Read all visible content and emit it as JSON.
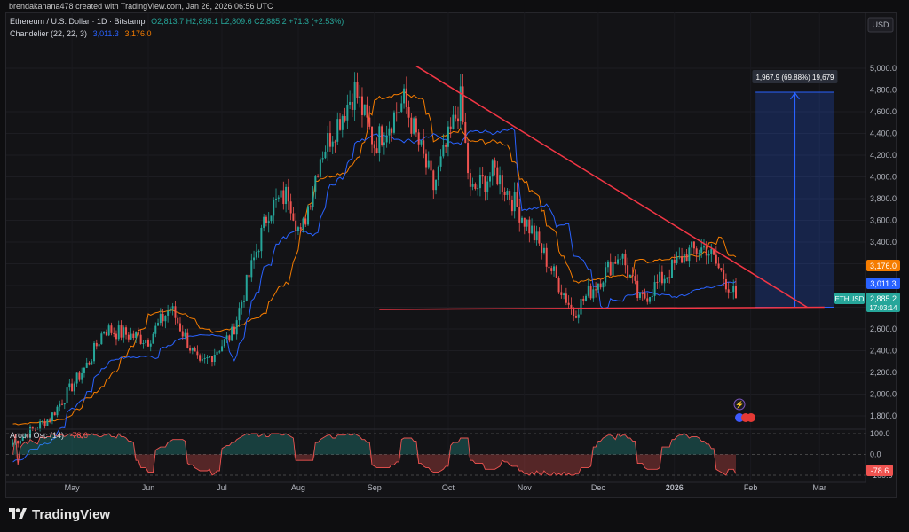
{
  "header": {
    "text": "brendakanana478 created with TradingView.com, Jan 26, 2026 06:56 UTC"
  },
  "legend": {
    "symbol": "Ethereum / U.S. Dollar · 1D · Bitstamp",
    "ohlc": "O2,813.7 H2,895.1 L2,809.6 C2,885.2 +71.3 (+2.53%)",
    "indicator_name": "Chandelier (22, 22, 3)",
    "indicator_val1": "3,011.3",
    "indicator_val2": "3,176.0",
    "aroon_name": "Aroon Osc (14)",
    "aroon_val": "-78.6"
  },
  "currency": "USD",
  "price_axis": [
    "5,000.0",
    "4,800.0",
    "4,600.0",
    "4,400.0",
    "4,200.0",
    "4,000.0",
    "3,800.0",
    "3,600.0",
    "3,400.0",
    "3,200.0",
    "3,000.0",
    "2,800.0",
    "2,600.0",
    "2,400.0",
    "2,200.0",
    "2,000.0",
    "1,800.0"
  ],
  "aroon_axis": [
    "100.0",
    "0.0",
    "-100.0"
  ],
  "time_axis": [
    "May",
    "Jun",
    "Jul",
    "Aug",
    "Sep",
    "Oct",
    "Nov",
    "Dec",
    "2026",
    "Feb",
    "Mar"
  ],
  "price_tags": {
    "chandelier_upper": "3,176.0",
    "chandelier_lower": "3,011.3",
    "symbol": "ETHUSD",
    "last_price": "2,885.2",
    "countdown": "17:03:14",
    "aroon_last": "-78.6"
  },
  "measure_label": "1,967.9 (69.88%) 19,679",
  "colors": {
    "up": "#26a69a",
    "down": "#ef5350",
    "chandelier_upper": "#f57c00",
    "chandelier_lower": "#2962ff",
    "trendline": "#f23645",
    "measure": "#2962ff"
  },
  "footer": {
    "brand": "TradingView"
  },
  "chart_data": {
    "type": "candlestick",
    "title": "Ethereum / U.S. Dollar · 1D · Bitstamp",
    "ylim": [
      1700,
      5150
    ],
    "price_key_points": [
      [
        "2025-04-07",
        1550
      ],
      [
        "2025-04-22",
        1780
      ],
      [
        "2025-05-08",
        2300
      ],
      [
        "2025-05-14",
        2600
      ],
      [
        "2025-06-01",
        2500
      ],
      [
        "2025-06-10",
        2800
      ],
      [
        "2025-06-22",
        2250
      ],
      [
        "2025-07-05",
        2550
      ],
      [
        "2025-07-20",
        3700
      ],
      [
        "2025-07-28",
        3850
      ],
      [
        "2025-08-02",
        3450
      ],
      [
        "2025-08-10",
        4200
      ],
      [
        "2025-08-24",
        4800
      ],
      [
        "2025-09-01",
        4300
      ],
      [
        "2025-09-13",
        4700
      ],
      [
        "2025-09-25",
        3900
      ],
      [
        "2025-10-06",
        4700
      ],
      [
        "2025-10-10",
        3850
      ],
      [
        "2025-10-20",
        4050
      ],
      [
        "2025-11-04",
        3500
      ],
      [
        "2025-11-21",
        2750
      ],
      [
        "2025-12-10",
        3300
      ],
      [
        "2025-12-18",
        2850
      ],
      [
        "2026-01-06",
        3300
      ],
      [
        "2026-01-14",
        3350
      ],
      [
        "2026-01-26",
        2885
      ]
    ],
    "trendlines": [
      {
        "name": "descending",
        "from": [
          "2025-09-18",
          5020
        ],
        "to": [
          "2026-02-24",
          2800
        ]
      },
      {
        "name": "support",
        "from": [
          "2025-09-03",
          2780
        ],
        "to": [
          "2026-03-03",
          2800
        ]
      }
    ],
    "measure": {
      "from": 2800,
      "to": 4780,
      "label": "1,967.9 (69.88%) 19,679"
    },
    "aroon_ylim": [
      -100,
      100
    ]
  }
}
